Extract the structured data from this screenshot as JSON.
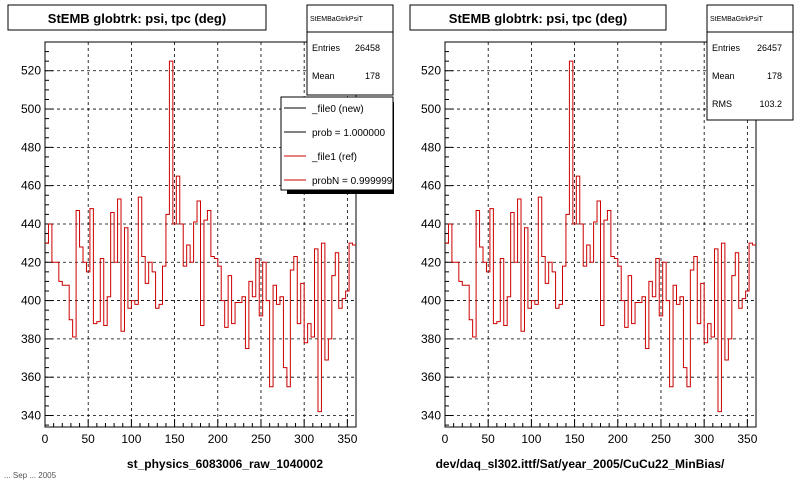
{
  "footer_fragment": "... Sep ... 2005",
  "panels": [
    {
      "title": "StEMB globtrk: psi, tpc (deg)",
      "stats": {
        "name": "StEMBaGtrkPsiT",
        "rows": [
          {
            "label": "Entries",
            "value": "26458"
          },
          {
            "label": "Mean",
            "value": "178"
          }
        ]
      },
      "legend": {
        "entries": [
          {
            "label": "_file0 (new)",
            "color": "#000000"
          },
          {
            "label": "prob = 1.000000",
            "color": "#000000"
          },
          {
            "label": "_file1 (ref)",
            "color": "#cc0000"
          },
          {
            "label": "probN = 0.999999",
            "color": "#cc0000"
          }
        ]
      },
      "xlabel": "st_physics_6083006_raw_1040002"
    },
    {
      "title": "StEMB globtrk: psi, tpc (deg)",
      "stats": {
        "name": "StEMBaGtrkPsiT",
        "rows": [
          {
            "label": "Entries",
            "value": "26457"
          },
          {
            "label": "Mean",
            "value": "178"
          },
          {
            "label": "RMS",
            "value": "103.2"
          }
        ]
      },
      "xlabel": "dev/daq_sl302.ittf/Sat/year_2005/CuCu22_MinBias/"
    }
  ],
  "chart_data": {
    "type": "line",
    "style": "step-histogram",
    "line_color": "#cc0000",
    "xlim": [
      0,
      360
    ],
    "ylim": [
      334,
      535
    ],
    "xticks": [
      0,
      50,
      100,
      150,
      200,
      250,
      300,
      350
    ],
    "yticks": [
      340,
      360,
      380,
      400,
      420,
      440,
      460,
      480,
      500,
      520
    ],
    "grid": true,
    "bin_width": 4,
    "x": [
      0,
      4,
      8,
      12,
      16,
      20,
      24,
      28,
      32,
      36,
      40,
      44,
      48,
      52,
      56,
      60,
      64,
      68,
      72,
      76,
      80,
      84,
      88,
      92,
      96,
      100,
      104,
      108,
      112,
      116,
      120,
      124,
      128,
      132,
      136,
      140,
      144,
      148,
      152,
      156,
      160,
      164,
      168,
      172,
      176,
      180,
      184,
      188,
      192,
      196,
      200,
      204,
      208,
      212,
      216,
      220,
      224,
      228,
      232,
      236,
      240,
      244,
      248,
      252,
      256,
      260,
      264,
      268,
      272,
      276,
      280,
      284,
      288,
      292,
      296,
      300,
      304,
      308,
      312,
      316,
      320,
      324,
      328,
      332,
      336,
      340,
      344,
      348,
      352,
      356
    ],
    "values": [
      430,
      440,
      420,
      420,
      410,
      408,
      408,
      390,
      381,
      447,
      428,
      420,
      415,
      448,
      388,
      389,
      422,
      387,
      402,
      446,
      420,
      453,
      384,
      438,
      396,
      400,
      398,
      454,
      423,
      409,
      420,
      415,
      396,
      398,
      418,
      445,
      525,
      440,
      465,
      440,
      418,
      429,
      420,
      441,
      452,
      387,
      442,
      447,
      423,
      422,
      418,
      400,
      386,
      413,
      388,
      399,
      399,
      402,
      375,
      410,
      402,
      422,
      392,
      420,
      400,
      355,
      408,
      398,
      402,
      365,
      355,
      416,
      423,
      388,
      409,
      378,
      388,
      381,
      427,
      342,
      430,
      369,
      380,
      413,
      425,
      396,
      401,
      405,
      430,
      429
    ]
  }
}
